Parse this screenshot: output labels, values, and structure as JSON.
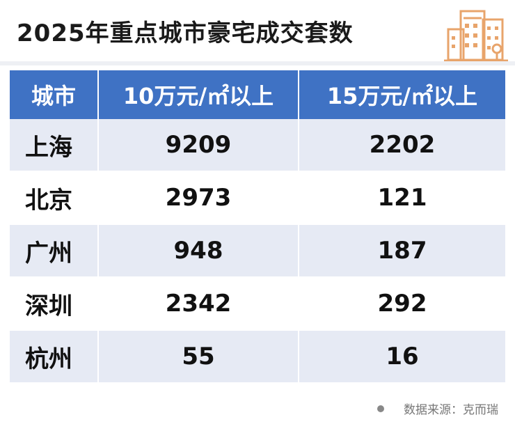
{
  "title": "2025年重点城市豪宅成交套数",
  "source": "数据来源：克而瑞",
  "colors": {
    "header": "#3f72c4",
    "alt_row": "#e6eaf4",
    "icon": "#e8a46b"
  },
  "icon": "building-icon",
  "chart_data": {
    "type": "table",
    "columns": [
      "城市",
      "10万元/㎡以上",
      "15万元/㎡以上"
    ],
    "rows": [
      {
        "city": "上海",
        "over10": "9209",
        "over15": "2202"
      },
      {
        "city": "北京",
        "over10": "2973",
        "over15": "121"
      },
      {
        "city": "广州",
        "over10": "948",
        "over15": "187"
      },
      {
        "city": "深圳",
        "over10": "2342",
        "over15": "292"
      },
      {
        "city": "杭州",
        "over10": "55",
        "over15": "16"
      }
    ]
  }
}
